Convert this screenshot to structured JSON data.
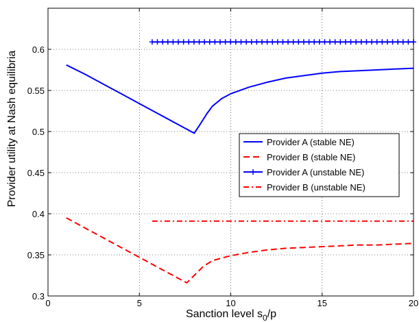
{
  "chart_data": {
    "type": "line",
    "title": "",
    "xlabel_main": "Sanction level s",
    "xlabel_sub": "0",
    "xlabel_tail": "/p",
    "ylabel": "Provider utility at Nash equilibria",
    "xlim": [
      0,
      20
    ],
    "ylim": [
      0.3,
      0.65
    ],
    "xticks": [
      0,
      5,
      10,
      15,
      20
    ],
    "yticks": [
      0.3,
      0.35,
      0.4,
      0.45,
      0.5,
      0.55,
      0.6
    ],
    "xtick_labels": [
      "0",
      "5",
      "10",
      "15",
      "20"
    ],
    "ytick_labels": [
      "0.3",
      "0.35",
      "0.4",
      "0.45",
      "0.5",
      "0.55",
      "0.6"
    ],
    "grid": true,
    "legend_position": "center-right",
    "series": [
      {
        "name": "Provider A (stable NE)",
        "color": "#0000ff",
        "style": "solid",
        "x": [
          1,
          2,
          3,
          4,
          5,
          6,
          7,
          8,
          8.3,
          8.7,
          9,
          9.5,
          10,
          11,
          12,
          13,
          14,
          15,
          16,
          17,
          18,
          19,
          20
        ],
        "y": [
          0.581,
          0.57,
          0.558,
          0.546,
          0.534,
          0.522,
          0.51,
          0.498,
          0.508,
          0.522,
          0.531,
          0.54,
          0.546,
          0.554,
          0.56,
          0.565,
          0.568,
          0.571,
          0.573,
          0.574,
          0.575,
          0.576,
          0.577
        ]
      },
      {
        "name": "Provider B (stable NE)",
        "color": "#ff0000",
        "style": "dashed",
        "x": [
          1,
          2,
          3,
          4,
          5,
          6,
          7,
          7.6,
          8,
          8.5,
          9,
          10,
          11,
          12,
          13,
          14,
          15,
          16,
          17,
          18,
          19,
          20
        ],
        "y": [
          0.395,
          0.383,
          0.371,
          0.359,
          0.347,
          0.335,
          0.323,
          0.316,
          0.325,
          0.336,
          0.343,
          0.349,
          0.353,
          0.356,
          0.358,
          0.359,
          0.36,
          0.361,
          0.362,
          0.362,
          0.363,
          0.364
        ]
      },
      {
        "name": "Provider A (unstable NE)",
        "color": "#0000ff",
        "style": "solid-plus",
        "x": [
          5.7,
          20
        ],
        "y": [
          0.609,
          0.609
        ]
      },
      {
        "name": "Provider B (unstable NE)",
        "color": "#ff0000",
        "style": "dashdot",
        "x": [
          5.7,
          20
        ],
        "y": [
          0.391,
          0.391
        ]
      }
    ]
  }
}
